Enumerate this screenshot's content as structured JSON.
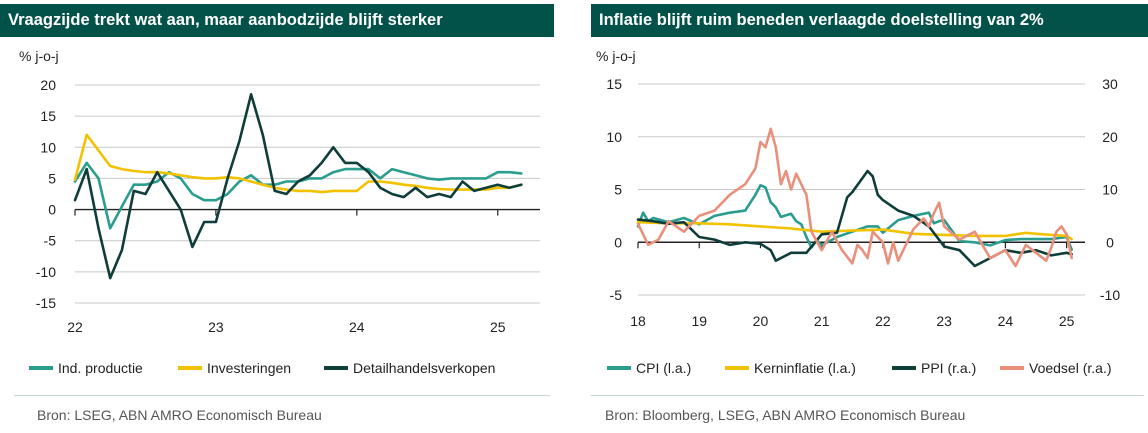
{
  "chart_data": [
    {
      "type": "line",
      "title": "Vraagzijde trekt wat aan, maar aanbodzijde blijft sterker",
      "ylabel": "% j-o-j",
      "ylim": [
        -15,
        20
      ],
      "yticks": [
        20,
        15,
        10,
        5,
        0,
        -5,
        -10,
        -15
      ],
      "xlim": [
        2022.0,
        2025.3
      ],
      "xticks": [
        {
          "v": 2022.0,
          "label": "22"
        },
        {
          "v": 2023.0,
          "label": "23"
        },
        {
          "v": 2024.0,
          "label": "24"
        },
        {
          "v": 2025.0,
          "label": "25"
        }
      ],
      "source": "Bron:  LSEG, ABN AMRO Economisch Bureau",
      "series": [
        {
          "name": "Ind. productie",
          "color": "#2a9d8f",
          "x": [
            2022.0,
            2022.083,
            2022.167,
            2022.25,
            2022.333,
            2022.417,
            2022.5,
            2022.583,
            2022.667,
            2022.75,
            2022.833,
            2022.917,
            2023.0,
            2023.083,
            2023.167,
            2023.25,
            2023.333,
            2023.417,
            2023.5,
            2023.583,
            2023.667,
            2023.75,
            2023.833,
            2023.917,
            2024.0,
            2024.083,
            2024.167,
            2024.25,
            2024.333,
            2024.417,
            2024.5,
            2024.583,
            2024.667,
            2024.75,
            2024.833,
            2024.917,
            2025.0,
            2025.083,
            2025.167
          ],
          "y": [
            4.5,
            7.5,
            5.0,
            -3.0,
            0.5,
            4.0,
            4.0,
            4.5,
            6.0,
            5.0,
            2.5,
            1.5,
            1.5,
            2.5,
            4.5,
            5.5,
            4.0,
            4.0,
            4.5,
            4.5,
            5.0,
            5.0,
            6.0,
            6.5,
            6.5,
            6.5,
            5.0,
            6.5,
            6.0,
            5.5,
            5.0,
            4.8,
            5.0,
            5.0,
            5.0,
            5.0,
            6.0,
            6.0,
            5.8
          ]
        },
        {
          "name": "Investeringen",
          "color": "#f2c200",
          "x": [
            2022.0,
            2022.083,
            2022.167,
            2022.25,
            2022.333,
            2022.417,
            2022.5,
            2022.583,
            2022.667,
            2022.75,
            2022.833,
            2022.917,
            2023.0,
            2023.083,
            2023.167,
            2023.25,
            2023.333,
            2023.417,
            2023.5,
            2023.583,
            2023.667,
            2023.75,
            2023.833,
            2023.917,
            2024.0,
            2024.083,
            2024.167,
            2024.25,
            2024.333,
            2024.417,
            2024.5,
            2024.583,
            2024.667,
            2024.75,
            2024.833,
            2024.917,
            2025.0,
            2025.083,
            2025.167
          ],
          "y": [
            4.8,
            12.0,
            9.5,
            7.0,
            6.5,
            6.2,
            6.0,
            6.0,
            5.8,
            5.5,
            5.2,
            5.0,
            5.0,
            5.2,
            5.0,
            4.5,
            4.0,
            3.5,
            3.2,
            3.0,
            3.0,
            2.8,
            3.0,
            3.0,
            3.0,
            4.5,
            4.5,
            4.3,
            4.0,
            3.8,
            3.5,
            3.3,
            3.2,
            3.2,
            3.2,
            3.2,
            3.5,
            3.5,
            4.0
          ]
        },
        {
          "name": "Detailhandelsverkopen",
          "color": "#0f3d3a",
          "x": [
            2022.0,
            2022.083,
            2022.167,
            2022.25,
            2022.333,
            2022.417,
            2022.5,
            2022.583,
            2022.667,
            2022.75,
            2022.833,
            2022.917,
            2023.0,
            2023.083,
            2023.167,
            2023.25,
            2023.333,
            2023.417,
            2023.5,
            2023.583,
            2023.667,
            2023.75,
            2023.833,
            2023.917,
            2024.0,
            2024.083,
            2024.167,
            2024.25,
            2024.333,
            2024.417,
            2024.5,
            2024.583,
            2024.667,
            2024.75,
            2024.833,
            2024.917,
            2025.0,
            2025.083,
            2025.167
          ],
          "y": [
            1.5,
            6.5,
            -3.0,
            -11.0,
            -6.5,
            3.0,
            2.5,
            6.0,
            3.0,
            0.0,
            -6.0,
            -2.0,
            -2.0,
            5.0,
            11.0,
            18.5,
            12.0,
            3.0,
            2.5,
            4.5,
            5.5,
            7.5,
            10.0,
            7.5,
            7.5,
            6.0,
            3.5,
            2.5,
            2.0,
            3.5,
            2.0,
            2.5,
            2.0,
            4.5,
            3.0,
            3.5,
            4.0,
            3.5,
            4.0
          ]
        }
      ]
    },
    {
      "type": "line",
      "title": "Inflatie blijft ruim beneden verlaagde doelstelling van 2%",
      "ylabel": "% j-o-j",
      "ylim": [
        -5,
        15
      ],
      "yticks": [
        15,
        10,
        5,
        0,
        -5
      ],
      "y2lim": [
        -10,
        30
      ],
      "y2ticks": [
        30,
        20,
        10,
        0,
        -10
      ],
      "xlim": [
        2018.0,
        2025.3
      ],
      "xticks": [
        {
          "v": 2018.0,
          "label": "18"
        },
        {
          "v": 2019.0,
          "label": "19"
        },
        {
          "v": 2020.0,
          "label": "20"
        },
        {
          "v": 2021.0,
          "label": "21"
        },
        {
          "v": 2022.0,
          "label": "22"
        },
        {
          "v": 2023.0,
          "label": "23"
        },
        {
          "v": 2024.0,
          "label": "24"
        },
        {
          "v": 2025.0,
          "label": "25"
        }
      ],
      "source": "Bron: Bloomberg, LSEG, ABN AMRO Economisch Bureau",
      "series": [
        {
          "name": "CPI (l.a.)",
          "axis": "left",
          "color": "#2a9d8f",
          "x": [
            2018.0,
            2018.083,
            2018.167,
            2018.25,
            2018.5,
            2018.75,
            2019.0,
            2019.25,
            2019.5,
            2019.75,
            2019.917,
            2020.0,
            2020.083,
            2020.167,
            2020.25,
            2020.333,
            2020.5,
            2020.583,
            2020.667,
            2020.75,
            2020.833,
            2020.917,
            2021.0,
            2021.25,
            2021.5,
            2021.75,
            2021.917,
            2022.0,
            2022.25,
            2022.5,
            2022.75,
            2022.833,
            2022.917,
            2023.0,
            2023.25,
            2023.5,
            2023.75,
            2024.0,
            2024.25,
            2024.5,
            2024.75,
            2025.0,
            2025.083
          ],
          "y": [
            1.5,
            2.8,
            2.0,
            2.3,
            1.9,
            2.3,
            1.7,
            2.5,
            2.8,
            3.0,
            4.5,
            5.4,
            5.2,
            3.8,
            3.3,
            2.4,
            2.7,
            2.0,
            1.7,
            0.5,
            -0.5,
            0.2,
            -0.3,
            0.5,
            1.0,
            1.5,
            1.5,
            0.9,
            2.1,
            2.5,
            2.8,
            1.8,
            2.0,
            2.1,
            0.1,
            0.0,
            -0.3,
            0.2,
            0.3,
            0.3,
            0.3,
            0.5,
            -0.7
          ]
        },
        {
          "name": "Kerninflatie (l.a.)",
          "axis": "left",
          "color": "#f2c200",
          "x": [
            2018.0,
            2018.5,
            2019.0,
            2019.5,
            2020.0,
            2020.5,
            2021.0,
            2021.5,
            2022.0,
            2022.5,
            2023.0,
            2023.5,
            2024.0,
            2024.333,
            2024.5,
            2025.0,
            2025.083
          ],
          "y": [
            1.9,
            1.8,
            1.8,
            1.7,
            1.5,
            1.3,
            1.0,
            1.1,
            1.2,
            0.8,
            0.7,
            0.6,
            0.6,
            0.9,
            0.8,
            0.6,
            0.3
          ]
        },
        {
          "name": "PPI (r.a.)",
          "axis": "right",
          "color": "#0f3d3a",
          "x": [
            2018.0,
            2018.25,
            2018.5,
            2018.75,
            2019.0,
            2019.25,
            2019.5,
            2019.75,
            2020.0,
            2020.167,
            2020.25,
            2020.5,
            2020.75,
            2021.0,
            2021.25,
            2021.417,
            2021.5,
            2021.75,
            2021.833,
            2021.917,
            2022.0,
            2022.25,
            2022.5,
            2022.75,
            2023.0,
            2023.25,
            2023.5,
            2023.75,
            2024.0,
            2024.25,
            2024.5,
            2024.75,
            2025.0,
            2025.083
          ],
          "y": [
            4.3,
            4.0,
            3.5,
            3.8,
            1.0,
            0.5,
            -0.5,
            0.0,
            -0.3,
            -1.5,
            -3.5,
            -2.0,
            -2.0,
            1.5,
            1.8,
            8.5,
            9.5,
            13.5,
            12.5,
            9.0,
            8.0,
            6.0,
            5.0,
            3.0,
            -0.8,
            -1.5,
            -4.5,
            -3.0,
            -1.5,
            -2.0,
            -1.5,
            -2.5,
            -2.0,
            -2.3
          ]
        },
        {
          "name": "Voedsel (r.a.)",
          "axis": "right",
          "color": "#e8907c",
          "x": [
            2018.0,
            2018.167,
            2018.333,
            2018.5,
            2018.75,
            2019.0,
            2019.25,
            2019.5,
            2019.75,
            2019.917,
            2020.0,
            2020.083,
            2020.167,
            2020.25,
            2020.333,
            2020.417,
            2020.5,
            2020.583,
            2020.75,
            2020.833,
            2021.0,
            2021.167,
            2021.333,
            2021.5,
            2021.583,
            2021.667,
            2021.75,
            2021.833,
            2022.0,
            2022.083,
            2022.167,
            2022.25,
            2022.5,
            2022.667,
            2022.75,
            2022.833,
            2022.917,
            2023.0,
            2023.25,
            2023.5,
            2023.75,
            2024.0,
            2024.167,
            2024.333,
            2024.5,
            2024.667,
            2024.75,
            2024.833,
            2024.917,
            2025.0,
            2025.083
          ],
          "y": [
            3.5,
            -0.5,
            0.5,
            4.0,
            2.0,
            5.0,
            6.0,
            9.0,
            11.0,
            14.0,
            19.0,
            18.0,
            21.5,
            18.0,
            11.0,
            13.5,
            10.0,
            13.0,
            9.0,
            2.0,
            -1.5,
            2.0,
            -1.5,
            -4.0,
            -0.5,
            -1.5,
            -3.0,
            2.0,
            0.0,
            -4.0,
            0.0,
            -3.5,
            2.5,
            4.5,
            3.0,
            5.5,
            7.5,
            3.0,
            0.5,
            2.0,
            -3.0,
            -1.5,
            -4.5,
            -0.5,
            -2.0,
            -3.5,
            -1.0,
            2.0,
            3.0,
            1.5,
            -3.0
          ]
        }
      ]
    }
  ]
}
